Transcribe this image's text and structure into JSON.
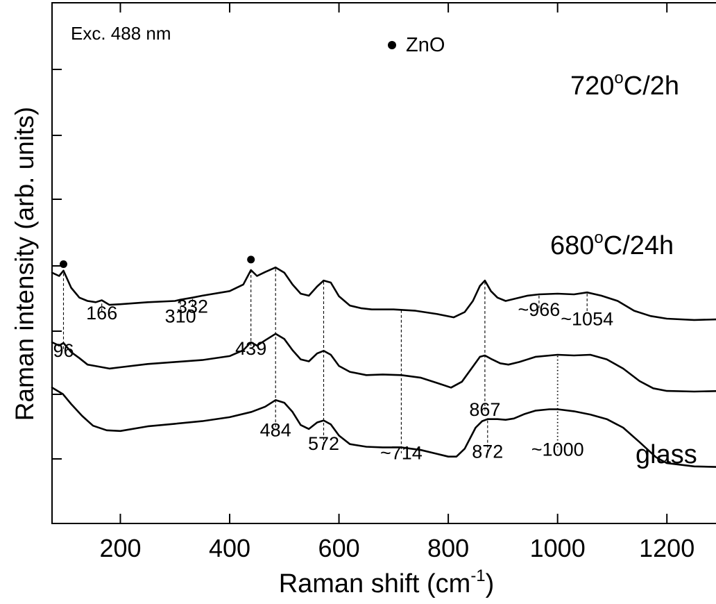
{
  "chart_data": {
    "type": "line",
    "legend_text": "Exc. 488 nm",
    "marker_legend": "ZnO",
    "xlabel": "Raman shift (cm",
    "xlabel_sup": "-1",
    "xlabel_end": ")",
    "ylabel": "Raman intensity (arb. units)",
    "xlim": [
      75,
      1300
    ],
    "xticks": [
      200,
      400,
      600,
      800,
      1000,
      1200
    ],
    "series": [
      {
        "name_main": "720",
        "name_sup": "o",
        "name_end": "C/2h",
        "points": [
          [
            75,
            2.18
          ],
          [
            88,
            2.13
          ],
          [
            96,
            2.21
          ],
          [
            110,
            1.95
          ],
          [
            125,
            1.8
          ],
          [
            140,
            1.75
          ],
          [
            155,
            1.73
          ],
          [
            166,
            1.76
          ],
          [
            180,
            1.69
          ],
          [
            200,
            1.7
          ],
          [
            250,
            1.73
          ],
          [
            300,
            1.75
          ],
          [
            310,
            1.77
          ],
          [
            332,
            1.8
          ],
          [
            350,
            1.83
          ],
          [
            400,
            1.9
          ],
          [
            425,
            2.0
          ],
          [
            439,
            2.22
          ],
          [
            450,
            2.13
          ],
          [
            465,
            2.19
          ],
          [
            484,
            2.26
          ],
          [
            500,
            2.18
          ],
          [
            515,
            2.0
          ],
          [
            530,
            1.86
          ],
          [
            545,
            1.83
          ],
          [
            560,
            1.97
          ],
          [
            572,
            2.06
          ],
          [
            585,
            2.03
          ],
          [
            600,
            1.82
          ],
          [
            620,
            1.68
          ],
          [
            640,
            1.64
          ],
          [
            660,
            1.62
          ],
          [
            700,
            1.62
          ],
          [
            740,
            1.6
          ],
          [
            780,
            1.55
          ],
          [
            810,
            1.5
          ],
          [
            830,
            1.58
          ],
          [
            845,
            1.75
          ],
          [
            858,
            1.98
          ],
          [
            867,
            2.06
          ],
          [
            878,
            1.9
          ],
          [
            890,
            1.8
          ],
          [
            905,
            1.75
          ],
          [
            920,
            1.78
          ],
          [
            945,
            1.83
          ],
          [
            966,
            1.85
          ],
          [
            1000,
            1.86
          ],
          [
            1030,
            1.85
          ],
          [
            1054,
            1.88
          ],
          [
            1080,
            1.83
          ],
          [
            1110,
            1.75
          ],
          [
            1140,
            1.6
          ],
          [
            1170,
            1.52
          ],
          [
            1200,
            1.48
          ],
          [
            1250,
            1.46
          ],
          [
            1300,
            1.47
          ]
        ]
      },
      {
        "name_main": "680",
        "name_sup": "o",
        "name_end": "C/24h",
        "points": [
          [
            75,
            1.12
          ],
          [
            88,
            1.07
          ],
          [
            96,
            1.11
          ],
          [
            110,
            0.97
          ],
          [
            125,
            0.88
          ],
          [
            140,
            0.78
          ],
          [
            160,
            0.75
          ],
          [
            180,
            0.72
          ],
          [
            200,
            0.74
          ],
          [
            250,
            0.79
          ],
          [
            300,
            0.82
          ],
          [
            350,
            0.85
          ],
          [
            400,
            0.91
          ],
          [
            425,
            1.0
          ],
          [
            439,
            1.12
          ],
          [
            450,
            1.07
          ],
          [
            465,
            1.15
          ],
          [
            484,
            1.25
          ],
          [
            500,
            1.17
          ],
          [
            515,
            1.0
          ],
          [
            530,
            0.86
          ],
          [
            545,
            0.83
          ],
          [
            560,
            0.95
          ],
          [
            572,
            0.99
          ],
          [
            585,
            0.93
          ],
          [
            600,
            0.76
          ],
          [
            620,
            0.67
          ],
          [
            650,
            0.62
          ],
          [
            680,
            0.63
          ],
          [
            714,
            0.62
          ],
          [
            750,
            0.58
          ],
          [
            780,
            0.5
          ],
          [
            805,
            0.43
          ],
          [
            825,
            0.52
          ],
          [
            845,
            0.75
          ],
          [
            858,
            0.9
          ],
          [
            867,
            0.92
          ],
          [
            880,
            0.86
          ],
          [
            895,
            0.8
          ],
          [
            910,
            0.78
          ],
          [
            930,
            0.82
          ],
          [
            960,
            0.9
          ],
          [
            1000,
            0.93
          ],
          [
            1030,
            0.92
          ],
          [
            1060,
            0.93
          ],
          [
            1090,
            0.86
          ],
          [
            1120,
            0.72
          ],
          [
            1150,
            0.53
          ],
          [
            1175,
            0.42
          ],
          [
            1200,
            0.38
          ],
          [
            1250,
            0.37
          ],
          [
            1300,
            0.38
          ]
        ]
      },
      {
        "name": "glass",
        "points": [
          [
            75,
            0.43
          ],
          [
            95,
            0.33
          ],
          [
            110,
            0.18
          ],
          [
            130,
            0.0
          ],
          [
            150,
            -0.15
          ],
          [
            175,
            -0.22
          ],
          [
            200,
            -0.23
          ],
          [
            250,
            -0.16
          ],
          [
            300,
            -0.12
          ],
          [
            350,
            -0.08
          ],
          [
            400,
            -0.02
          ],
          [
            440,
            0.06
          ],
          [
            465,
            0.14
          ],
          [
            484,
            0.24
          ],
          [
            500,
            0.2
          ],
          [
            515,
            0.06
          ],
          [
            530,
            -0.14
          ],
          [
            545,
            -0.2
          ],
          [
            560,
            -0.1
          ],
          [
            572,
            -0.07
          ],
          [
            585,
            -0.13
          ],
          [
            600,
            -0.3
          ],
          [
            620,
            -0.43
          ],
          [
            650,
            -0.47
          ],
          [
            680,
            -0.48
          ],
          [
            714,
            -0.48
          ],
          [
            750,
            -0.52
          ],
          [
            780,
            -0.58
          ],
          [
            800,
            -0.62
          ],
          [
            815,
            -0.62
          ],
          [
            830,
            -0.5
          ],
          [
            850,
            -0.18
          ],
          [
            862,
            -0.08
          ],
          [
            872,
            -0.05
          ],
          [
            890,
            -0.05
          ],
          [
            905,
            -0.06
          ],
          [
            920,
            -0.04
          ],
          [
            940,
            0.03
          ],
          [
            960,
            0.08
          ],
          [
            985,
            0.1
          ],
          [
            1000,
            0.1
          ],
          [
            1030,
            0.07
          ],
          [
            1060,
            0.02
          ],
          [
            1090,
            -0.05
          ],
          [
            1120,
            -0.18
          ],
          [
            1150,
            -0.4
          ],
          [
            1180,
            -0.63
          ],
          [
            1200,
            -0.72
          ],
          [
            1250,
            -0.77
          ],
          [
            1300,
            -0.78
          ]
        ]
      }
    ],
    "markers": [
      [
        96,
        2.31
      ],
      [
        439,
        2.38
      ],
      [
        695,
        2.43
      ]
    ],
    "annotations": [
      {
        "text": "96",
        "x": 96,
        "y_top": 2.17,
        "y_bottom": 0.99,
        "text_y": 0.9,
        "style": "dashed"
      },
      {
        "text": "166",
        "x": 166,
        "y_top": 1.71,
        "y_bottom": 1.56,
        "text_y": 1.47,
        "style": "dashed"
      },
      {
        "text": "310",
        "x": 310,
        "y_top": 1.74,
        "y_bottom": 1.53,
        "text_y": 1.42,
        "style": "dashed"
      },
      {
        "text": "332",
        "x": 332,
        "y_top": 1.78,
        "y_bottom": 1.66,
        "text_y": 1.57,
        "style": "dashed"
      },
      {
        "text": "439",
        "x": 439,
        "y_top": 2.22,
        "y_bottom": 1.02,
        "text_y": 0.93,
        "style": "dashed"
      },
      {
        "text": "484",
        "x": 484,
        "y_top": 2.24,
        "y_bottom": -0.22,
        "text_y": -0.31,
        "style": "dashed"
      },
      {
        "text": "572",
        "x": 572,
        "y_top": 2.04,
        "y_bottom": -0.43,
        "text_y": -0.52,
        "style": "dashed"
      },
      {
        "text": "~714",
        "x": 714,
        "y_top": 1.61,
        "y_bottom": -0.57,
        "text_y": -0.66,
        "style": "dashed"
      },
      {
        "text": "867",
        "x": 867,
        "y_top": 2.04,
        "y_bottom": 0.08,
        "text_y": 0.0,
        "style": "dashed"
      },
      {
        "text": "872",
        "x": 872,
        "y_top": -0.07,
        "y_bottom": -0.55,
        "text_y": -0.64,
        "style": "dashed"
      },
      {
        "text": "~966",
        "x": 966,
        "y_top": 1.83,
        "y_bottom": 1.61,
        "text_y": 1.52,
        "style": "dashed"
      },
      {
        "text": "~1054",
        "x": 1054,
        "y_top": 1.86,
        "y_bottom": 1.56,
        "text_y": 1.38,
        "style": "dashed"
      },
      {
        "text": "~1000",
        "x": 1000,
        "y_top": 0.91,
        "y_bottom": -0.52,
        "text_y": -0.61,
        "style": "dotted"
      }
    ],
    "grid": false
  }
}
